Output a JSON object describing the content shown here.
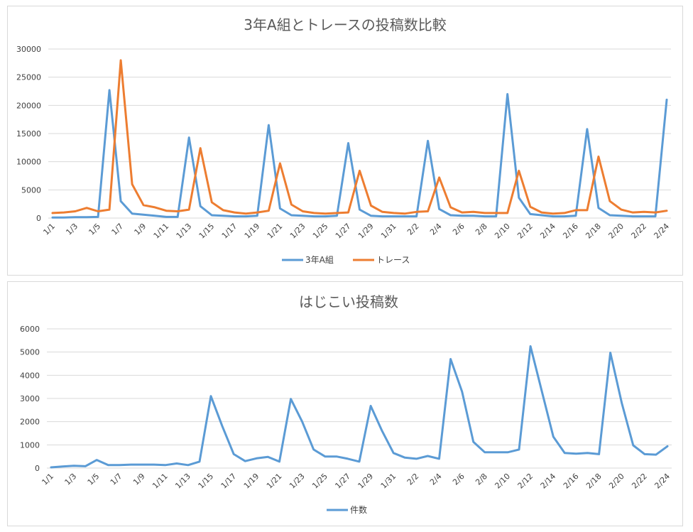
{
  "colors": {
    "blue": "#5b9bd5",
    "orange": "#ed7d31",
    "grid": "#d9d9d9",
    "text": "#404040"
  },
  "chart_data": [
    {
      "type": "line",
      "title": "3年A組とトレースの投稿数比較",
      "ylim": [
        0,
        30000
      ],
      "yticks": [
        0,
        5000,
        10000,
        15000,
        20000,
        25000,
        30000
      ],
      "x": [
        "1/1",
        "1/2",
        "1/3",
        "1/4",
        "1/5",
        "1/6",
        "1/7",
        "1/8",
        "1/9",
        "1/10",
        "1/11",
        "1/12",
        "1/13",
        "1/14",
        "1/15",
        "1/16",
        "1/17",
        "1/18",
        "1/19",
        "1/20",
        "1/21",
        "1/22",
        "1/23",
        "1/24",
        "1/25",
        "1/26",
        "1/27",
        "1/28",
        "1/29",
        "1/30",
        "1/31",
        "2/1",
        "2/2",
        "2/3",
        "2/4",
        "2/5",
        "2/6",
        "2/7",
        "2/8",
        "2/9",
        "2/10",
        "2/11",
        "2/12",
        "2/13",
        "2/14",
        "2/15",
        "2/16",
        "2/17",
        "2/18",
        "2/19",
        "2/20",
        "2/21",
        "2/22",
        "2/23",
        "2/24"
      ],
      "xtick_labels": [
        "1/1",
        "1/3",
        "1/5",
        "1/7",
        "1/9",
        "1/11",
        "1/13",
        "1/15",
        "1/17",
        "1/19",
        "1/21",
        "1/23",
        "1/25",
        "1/27",
        "1/29",
        "1/31",
        "2/2",
        "2/4",
        "2/6",
        "2/8",
        "2/10",
        "2/12",
        "2/14",
        "2/16",
        "2/18",
        "2/20",
        "2/22",
        "2/24"
      ],
      "legend_position": "bottom",
      "grid": true,
      "series": [
        {
          "name": "3年A組",
          "color": "#5b9bd5",
          "values": [
            100,
            100,
            150,
            150,
            200,
            22700,
            3000,
            800,
            600,
            400,
            200,
            200,
            14300,
            2100,
            500,
            400,
            300,
            300,
            400,
            16500,
            1700,
            500,
            400,
            300,
            300,
            400,
            13300,
            1500,
            400,
            300,
            300,
            300,
            300,
            13700,
            1600,
            500,
            400,
            400,
            300,
            300,
            22000,
            3600,
            700,
            500,
            300,
            300,
            400,
            15800,
            1800,
            500,
            400,
            300,
            300,
            300,
            21000
          ]
        },
        {
          "name": "トレース",
          "color": "#ed7d31",
          "values": [
            900,
            1000,
            1200,
            1800,
            1200,
            1500,
            28000,
            6000,
            2300,
            1900,
            1300,
            1200,
            1500,
            12400,
            2800,
            1400,
            1000,
            800,
            1000,
            1300,
            9700,
            2400,
            1200,
            900,
            800,
            900,
            1000,
            8400,
            2200,
            1100,
            900,
            800,
            1100,
            1200,
            7200,
            1900,
            1000,
            1100,
            900,
            900,
            900,
            8400,
            2000,
            1000,
            800,
            900,
            1400,
            1400,
            10900,
            3000,
            1500,
            1000,
            1100,
            1000,
            1300
          ]
        }
      ]
    },
    {
      "type": "line",
      "title": "はじこい投稿数",
      "ylim": [
        0,
        6000
      ],
      "yticks": [
        0,
        1000,
        2000,
        3000,
        4000,
        5000,
        6000
      ],
      "x": [
        "1/1",
        "1/2",
        "1/3",
        "1/4",
        "1/5",
        "1/6",
        "1/7",
        "1/8",
        "1/9",
        "1/10",
        "1/11",
        "1/12",
        "1/13",
        "1/14",
        "1/15",
        "1/16",
        "1/17",
        "1/18",
        "1/19",
        "1/20",
        "1/21",
        "1/22",
        "1/23",
        "1/24",
        "1/25",
        "1/26",
        "1/27",
        "1/28",
        "1/29",
        "1/30",
        "1/31",
        "2/1",
        "2/2",
        "2/3",
        "2/4",
        "2/5",
        "2/6",
        "2/7",
        "2/8",
        "2/9",
        "2/10",
        "2/11",
        "2/12",
        "2/13",
        "2/14",
        "2/15",
        "2/16",
        "2/17",
        "2/18",
        "2/19",
        "2/20",
        "2/21",
        "2/22",
        "2/23",
        "2/24"
      ],
      "xtick_labels": [
        "1/1",
        "1/3",
        "1/5",
        "1/7",
        "1/9",
        "1/11",
        "1/13",
        "1/15",
        "1/17",
        "1/19",
        "1/21",
        "1/23",
        "1/25",
        "1/27",
        "1/29",
        "1/31",
        "2/2",
        "2/4",
        "2/6",
        "2/8",
        "2/10",
        "2/12",
        "2/14",
        "2/16",
        "2/18",
        "2/20",
        "2/22",
        "2/24"
      ],
      "legend_position": "bottom",
      "grid": true,
      "series": [
        {
          "name": "件数",
          "color": "#5b9bd5",
          "values": [
            30,
            70,
            100,
            80,
            350,
            130,
            130,
            150,
            150,
            150,
            130,
            200,
            130,
            280,
            3100,
            1800,
            600,
            300,
            420,
            480,
            280,
            2980,
            2000,
            800,
            500,
            500,
            400,
            280,
            2680,
            1600,
            650,
            450,
            400,
            520,
            400,
            4700,
            3300,
            1130,
            680,
            680,
            680,
            800,
            5250,
            3300,
            1350,
            650,
            620,
            650,
            600,
            4970,
            2800,
            980,
            600,
            580,
            940
          ]
        }
      ]
    }
  ]
}
